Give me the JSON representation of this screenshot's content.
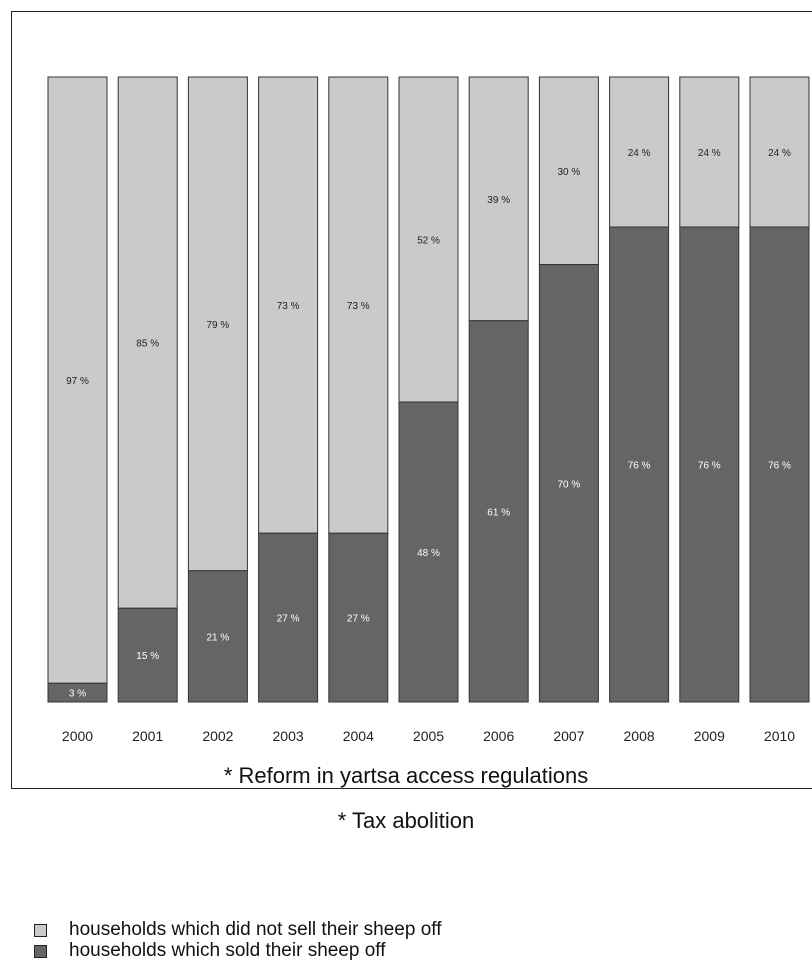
{
  "chart_data": {
    "type": "bar",
    "stacked": true,
    "categories": [
      "2000",
      "2001",
      "2002",
      "2003",
      "2004",
      "2005",
      "2006",
      "2007",
      "2008",
      "2009",
      "2010"
    ],
    "series": [
      {
        "name": "households which sold their sheep off",
        "color": "#656565",
        "values": [
          3,
          15,
          21,
          27,
          27,
          48,
          61,
          70,
          76,
          76,
          76
        ],
        "labels": [
          "3 %",
          "15 %",
          "21 %",
          "27 %",
          "27 %",
          "48 %",
          "61 %",
          "70 %",
          "76 %",
          "76 %",
          "76 %"
        ]
      },
      {
        "name": "households which did not sell their sheep off",
        "color": "#cacaca",
        "values": [
          97,
          85,
          79,
          73,
          73,
          52,
          39,
          30,
          24,
          24,
          24
        ],
        "labels": [
          "97 %",
          "85 %",
          "79 %",
          "73 %",
          "73 %",
          "52 %",
          "39 %",
          "30 %",
          "24 %",
          "24 %",
          "24 %"
        ]
      }
    ],
    "ylim": [
      0,
      100
    ],
    "grid": false,
    "legend": "bottom-left",
    "annotations": [
      "* Reform in yartsa access regulations",
      "* Tax abolition"
    ]
  },
  "legend": {
    "not_sold": "households which did not sell their sheep off",
    "sold": "households which sold their sheep off"
  }
}
